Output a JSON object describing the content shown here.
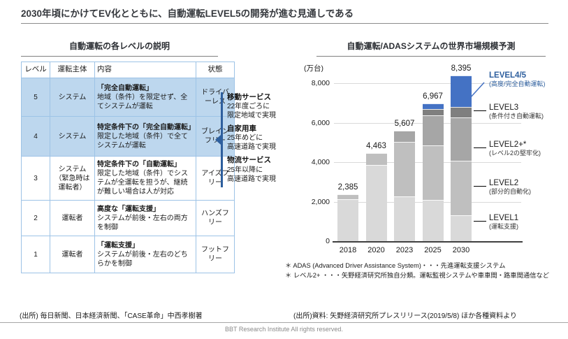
{
  "page_title": "2030年頃にかけてEV化とともに、自動運転LEVEL5の開発が進む見通しである",
  "colors": {
    "accent_blue": "#2e5f9e",
    "bar_blue": "#4472c4",
    "table_highlight": "#bdd7ee",
    "table_border": "#9dc3e6",
    "gray_l1": "#d9d9d9",
    "gray_l2": "#bfbfbf",
    "gray_l2plus": "#a6a6a6",
    "gray_l3": "#7f7f7f"
  },
  "table_section": {
    "title": "自動運転の各レベルの説明",
    "headers": [
      "レベル",
      "運転主体",
      "内容",
      "状態"
    ],
    "rows": [
      {
        "level": "5",
        "actor": "システム",
        "content_bold": "「完全自動運転」",
        "content": "地域（条件）を限定せず、全てシステムが運転",
        "state": "ドライバーレス",
        "highlight": true
      },
      {
        "level": "4",
        "actor": "システム",
        "content_bold": "特定条件下の「完全自動運転」",
        "content": "限定した地域（条件）で全てシステムが運転",
        "state": "ブレインフリー",
        "highlight": true
      },
      {
        "level": "3",
        "actor": "システム（緊急時は運転者）",
        "content_bold": "特定条件下の「自動運転」",
        "content": "限定した地域（条件）でシステムが全運転を担うが、継続が難しい場合は人が対応",
        "state": "アイズフリー",
        "highlight": false
      },
      {
        "level": "2",
        "actor": "運転者",
        "content_bold": "高度な「運転支援」",
        "content": "システムが前後・左右の両方を制御",
        "state": "ハンズフリー",
        "highlight": false
      },
      {
        "level": "1",
        "actor": "運転者",
        "content_bold": "「運転支援」",
        "content": "システムが前後・左右のどちらかを制御",
        "state": "フットフリー",
        "highlight": false
      }
    ]
  },
  "annotations": {
    "items": [
      {
        "title": "移動サービス",
        "lines": [
          "22年度ごろに",
          "限定地域で実現"
        ]
      },
      {
        "title": "自家用車",
        "lines": [
          "25年めどに",
          "高速道路で実現"
        ]
      },
      {
        "title": "物流サービス",
        "lines": [
          "25年以降に",
          "高速道路で実現"
        ]
      }
    ]
  },
  "chart_section": {
    "title": "自動運転/ADASシステムの世界市場規模予測",
    "unit_label": "(万台)",
    "footnotes": [
      "＊ ADAS (Advanced Driver Assistance System)・・・先進運転支援システム",
      "＊ レベル2+ ・・・矢野経済研究所独自分類。運転監視システムや車車間・路車間通信など"
    ]
  },
  "chart_data": {
    "type": "bar",
    "stacked": true,
    "title": "自動運転/ADASシステムの世界市場規模予測",
    "unit": "万台",
    "categories": [
      "2018",
      "2020",
      "2023",
      "2025",
      "2030"
    ],
    "totals": [
      2385,
      4463,
      5607,
      6967,
      8395
    ],
    "series": [
      {
        "name": "LEVEL1",
        "sub": "(運転支援)",
        "color": "#d9d9d9",
        "values": [
          2130,
          3870,
          2270,
          2090,
          1300
        ]
      },
      {
        "name": "LEVEL2",
        "sub": "(部分的自動化)",
        "color": "#bfbfbf",
        "values": [
          255,
          593,
          2750,
          2760,
          2780
        ]
      },
      {
        "name": "LEVEL2+*",
        "sub": "(レベル2の堅牢化)",
        "color": "#a6a6a6",
        "values": [
          0,
          0,
          587,
          1530,
          2180
        ]
      },
      {
        "name": "LEVEL3",
        "sub": "(条件付き自動運転)",
        "color": "#7f7f7f",
        "values": [
          0,
          0,
          0,
          320,
          535
        ]
      },
      {
        "name": "LEVEL4/5",
        "sub": "(高度/完全自動運転)",
        "color": "#4472c4",
        "values": [
          0,
          0,
          0,
          267,
          1600
        ]
      }
    ],
    "y_ticks": [
      0,
      2000,
      4000,
      6000,
      8000
    ],
    "ylim": [
      0,
      8800
    ],
    "grid": true,
    "legend_position": "right"
  },
  "sources": {
    "left": "(出所) 毎日新聞、日本経済新聞、「CASE革命」中西孝樹著",
    "right": "(出所)資料: 矢野経済研究所プレスリリース(2019/5/8) ほか各種資料より"
  },
  "footer": "BBT Research Institute All rights reserved."
}
